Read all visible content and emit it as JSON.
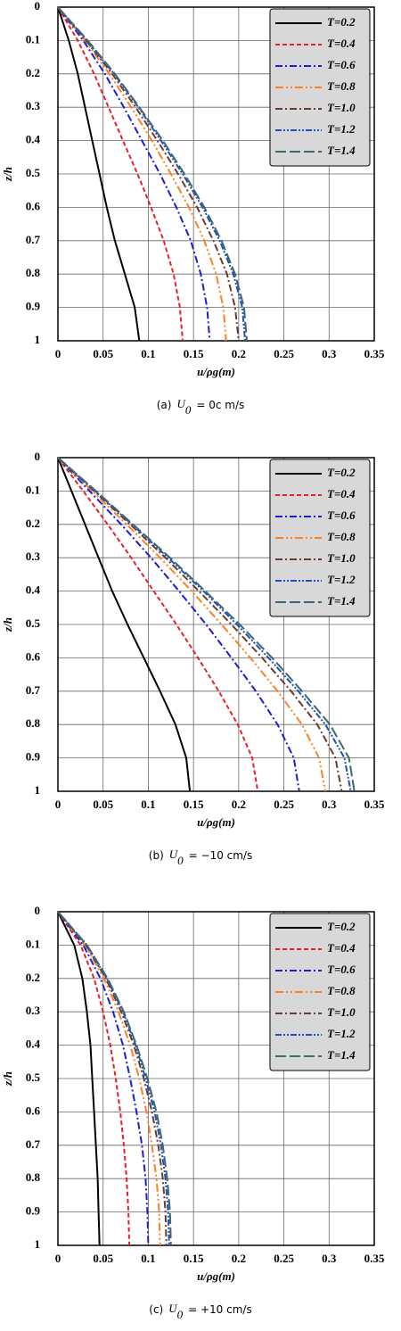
{
  "chart_data": [
    {
      "type": "line",
      "x_label": "u/ρg(m)",
      "y_label": "z/h",
      "caption": "(a)",
      "caption_var": "U",
      "caption_sub": "0",
      "caption_value": "= 0c m/s",
      "z": [
        0,
        0.1,
        0.2,
        0.3,
        0.4,
        0.5,
        0.6,
        0.7,
        0.8,
        0.9,
        1
      ],
      "xlim": [
        0,
        0.35
      ],
      "xticks": [
        0,
        0.05,
        0.1,
        0.15,
        0.2,
        0.25,
        0.3,
        0.35
      ],
      "ylim": [
        0,
        1
      ],
      "yticks": [
        0,
        0.1,
        0.2,
        0.3,
        0.4,
        0.5,
        0.6,
        0.7,
        0.8,
        0.9,
        1
      ],
      "y_inverted": true,
      "grid": true,
      "legend": "upper right",
      "series": [
        {
          "name": "T=0.2",
          "color": "#000000",
          "values": [
            0,
            0.012,
            0.022,
            0.03,
            0.038,
            0.046,
            0.054,
            0.063,
            0.074,
            0.085,
            0.09
          ]
        },
        {
          "name": "T=0.4",
          "color": "#e8202a",
          "values": [
            0,
            0.022,
            0.04,
            0.056,
            0.072,
            0.088,
            0.103,
            0.117,
            0.128,
            0.135,
            0.138
          ]
        },
        {
          "name": "T=0.6",
          "color": "#1c1cd0",
          "values": [
            0,
            0.028,
            0.052,
            0.073,
            0.093,
            0.113,
            0.131,
            0.147,
            0.158,
            0.165,
            0.168
          ]
        },
        {
          "name": "T=0.8",
          "color": "#ff8020",
          "values": [
            0,
            0.03,
            0.057,
            0.081,
            0.104,
            0.125,
            0.145,
            0.162,
            0.175,
            0.183,
            0.186
          ]
        },
        {
          "name": "T=1.0",
          "color": "#6b3a2e",
          "values": [
            0,
            0.031,
            0.06,
            0.086,
            0.11,
            0.133,
            0.154,
            0.172,
            0.187,
            0.196,
            0.2
          ]
        },
        {
          "name": "T=1.2",
          "color": "#2050c0",
          "values": [
            0,
            0.032,
            0.062,
            0.089,
            0.114,
            0.138,
            0.16,
            0.179,
            0.194,
            0.204,
            0.207
          ]
        },
        {
          "name": "T=1.4",
          "color": "#3a6a70",
          "values": [
            0,
            0.033,
            0.063,
            0.09,
            0.116,
            0.14,
            0.162,
            0.181,
            0.196,
            0.206,
            0.209
          ]
        }
      ]
    },
    {
      "type": "line",
      "x_label": "u/ρg(m)",
      "y_label": "z/h",
      "caption": "(b)",
      "caption_var": "U",
      "caption_sub": "0",
      "caption_value": "= −10 cm/s",
      "z": [
        0,
        0.1,
        0.2,
        0.3,
        0.4,
        0.5,
        0.6,
        0.7,
        0.8,
        0.9,
        1
      ],
      "xlim": [
        0,
        0.35
      ],
      "xticks": [
        0,
        0.05,
        0.1,
        0.15,
        0.2,
        0.25,
        0.3,
        0.35
      ],
      "ylim": [
        0,
        1
      ],
      "yticks": [
        0,
        0.1,
        0.2,
        0.3,
        0.4,
        0.5,
        0.6,
        0.7,
        0.8,
        0.9,
        1
      ],
      "y_inverted": true,
      "grid": true,
      "legend": "upper right",
      "series": [
        {
          "name": "T=0.2",
          "color": "#000000",
          "values": [
            0,
            0.015,
            0.03,
            0.045,
            0.06,
            0.077,
            0.095,
            0.113,
            0.13,
            0.142,
            0.146
          ]
        },
        {
          "name": "T=0.4",
          "color": "#e8202a",
          "values": [
            0,
            0.028,
            0.055,
            0.081,
            0.106,
            0.131,
            0.155,
            0.178,
            0.199,
            0.215,
            0.221
          ]
        },
        {
          "name": "T=0.6",
          "color": "#1c1cd0",
          "values": [
            0,
            0.035,
            0.07,
            0.103,
            0.134,
            0.164,
            0.192,
            0.219,
            0.243,
            0.261,
            0.267
          ]
        },
        {
          "name": "T=0.8",
          "color": "#ff8020",
          "values": [
            0,
            0.038,
            0.076,
            0.113,
            0.148,
            0.181,
            0.213,
            0.243,
            0.27,
            0.289,
            0.296
          ]
        },
        {
          "name": "T=1.0",
          "color": "#6b3a2e",
          "values": [
            0,
            0.04,
            0.08,
            0.119,
            0.156,
            0.192,
            0.226,
            0.258,
            0.287,
            0.307,
            0.314
          ]
        },
        {
          "name": "T=1.2",
          "color": "#2050c0",
          "values": [
            0,
            0.041,
            0.082,
            0.122,
            0.161,
            0.198,
            0.233,
            0.266,
            0.296,
            0.317,
            0.324
          ]
        },
        {
          "name": "T=1.4",
          "color": "#3a6a70",
          "values": [
            0,
            0.042,
            0.083,
            0.124,
            0.163,
            0.201,
            0.237,
            0.27,
            0.301,
            0.322,
            0.328
          ]
        }
      ]
    },
    {
      "type": "line",
      "x_label": "u/ρg(m)",
      "y_label": "z/h",
      "caption": "(c)",
      "caption_var": "U",
      "caption_sub": "0",
      "caption_value": "= +10 cm/s",
      "z": [
        0,
        0.1,
        0.2,
        0.3,
        0.4,
        0.5,
        0.6,
        0.7,
        0.8,
        0.9,
        1
      ],
      "xlim": [
        0,
        0.35
      ],
      "xticks": [
        0,
        0.05,
        0.1,
        0.15,
        0.2,
        0.25,
        0.3,
        0.35
      ],
      "ylim": [
        0,
        1
      ],
      "yticks": [
        0,
        0.1,
        0.2,
        0.3,
        0.4,
        0.5,
        0.6,
        0.7,
        0.8,
        0.9,
        1
      ],
      "y_inverted": true,
      "grid": true,
      "legend": "upper right",
      "series": [
        {
          "name": "T=0.2",
          "color": "#000000",
          "values": [
            0,
            0.018,
            0.027,
            0.032,
            0.036,
            0.038,
            0.04,
            0.042,
            0.044,
            0.045,
            0.046
          ]
        },
        {
          "name": "T=0.4",
          "color": "#e8202a",
          "values": [
            0,
            0.025,
            0.04,
            0.05,
            0.058,
            0.064,
            0.069,
            0.073,
            0.076,
            0.078,
            0.079
          ]
        },
        {
          "name": "T=0.6",
          "color": "#1c1cd0",
          "values": [
            0,
            0.028,
            0.047,
            0.061,
            0.072,
            0.08,
            0.087,
            0.093,
            0.097,
            0.099,
            0.1
          ]
        },
        {
          "name": "T=0.8",
          "color": "#ff8020",
          "values": [
            0,
            0.03,
            0.051,
            0.067,
            0.08,
            0.09,
            0.098,
            0.104,
            0.109,
            0.112,
            0.113
          ]
        },
        {
          "name": "T=1.0",
          "color": "#6b3a2e",
          "values": [
            0,
            0.031,
            0.053,
            0.07,
            0.084,
            0.095,
            0.104,
            0.111,
            0.116,
            0.119,
            0.12
          ]
        },
        {
          "name": "T=1.2",
          "color": "#2050c0",
          "values": [
            0,
            0.032,
            0.054,
            0.072,
            0.086,
            0.097,
            0.107,
            0.114,
            0.119,
            0.122,
            0.123
          ]
        },
        {
          "name": "T=1.4",
          "color": "#3a6a70",
          "values": [
            0,
            0.032,
            0.055,
            0.073,
            0.087,
            0.099,
            0.109,
            0.116,
            0.121,
            0.124,
            0.125
          ]
        }
      ]
    }
  ]
}
